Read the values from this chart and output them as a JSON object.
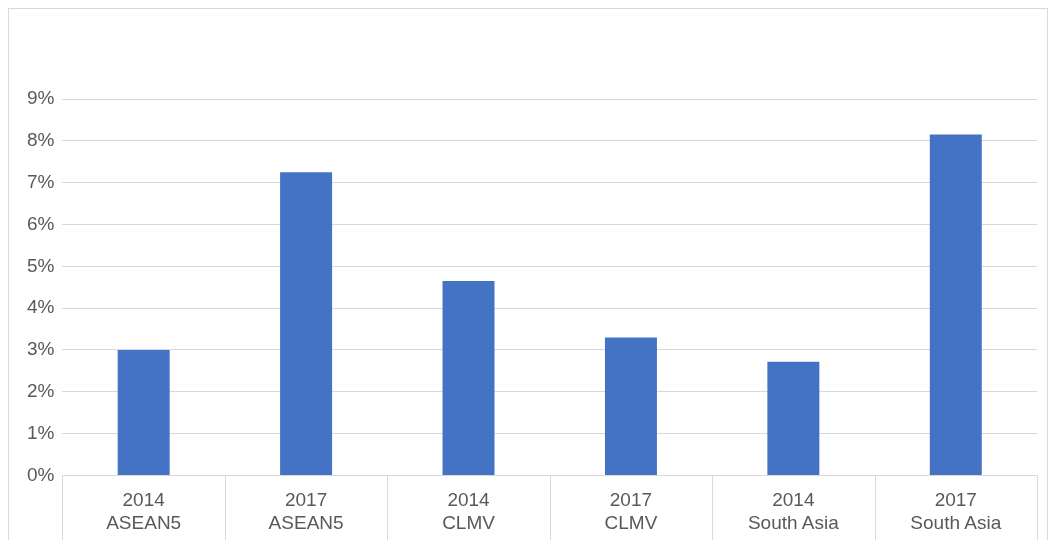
{
  "chart_data": {
    "type": "bar",
    "categories": [
      "2014\nASEAN5",
      "2017\nASEAN5",
      "2014\nCLMV",
      "2017\nCLMV",
      "2014\nSouth Asia",
      "2017\nSouth Asia"
    ],
    "values": [
      3.0,
      7.25,
      4.65,
      3.3,
      2.72,
      8.15
    ],
    "color": "#4472c4",
    "ylim": [
      0,
      9
    ],
    "yticks": [
      {
        "value": 0,
        "label": "0%"
      },
      {
        "value": 1,
        "label": "1%"
      },
      {
        "value": 2,
        "label": "2%"
      },
      {
        "value": 3,
        "label": "3%"
      },
      {
        "value": 4,
        "label": "4%"
      },
      {
        "value": 5,
        "label": "5%"
      },
      {
        "value": 6,
        "label": "6%"
      },
      {
        "value": 7,
        "label": "7%"
      },
      {
        "value": 8,
        "label": "8%"
      },
      {
        "value": 9,
        "label": "9%"
      }
    ],
    "grid": "y",
    "legend": false
  }
}
